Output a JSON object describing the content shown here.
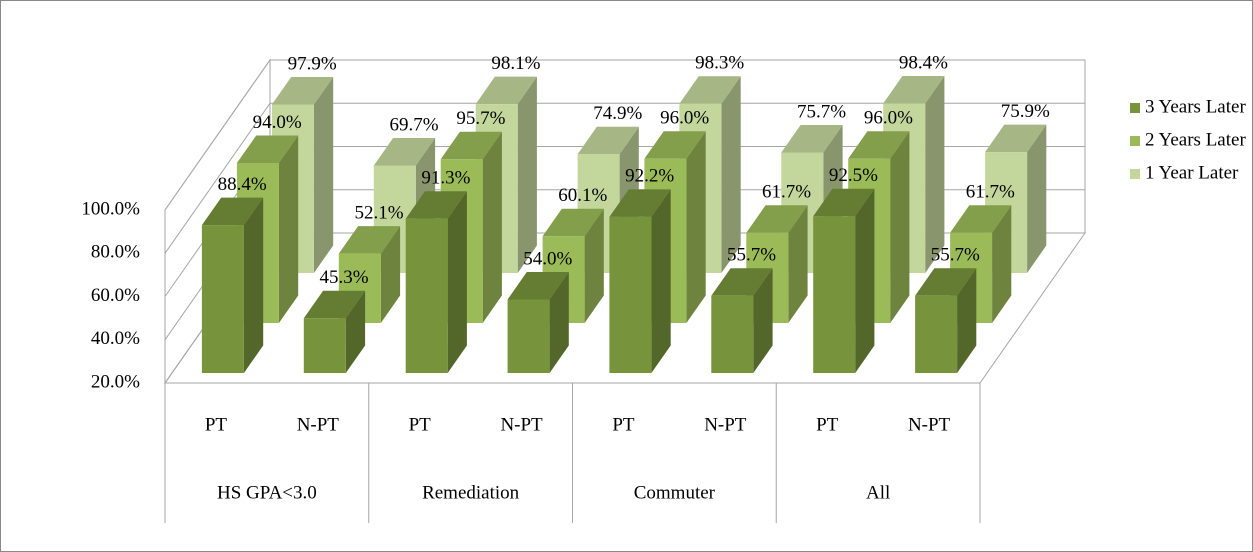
{
  "chart_data": {
    "type": "bar3d",
    "categories": [
      "PT",
      "N-PT",
      "PT",
      "N-PT",
      "PT",
      "N-PT",
      "PT",
      "N-PT"
    ],
    "groups": [
      "HS GPA<3.0",
      "Remediation",
      "Commuter",
      "All"
    ],
    "series": [
      {
        "name": "3 Years Later",
        "color": "#77933c",
        "values": [
          88.4,
          45.3,
          91.3,
          54.0,
          92.2,
          55.7,
          92.5,
          55.7
        ],
        "value_labels": [
          "88.4%",
          "45.3%",
          "91.3%",
          "54.0%",
          "92.2%",
          "55.7%",
          "92.5%",
          "55.7%"
        ]
      },
      {
        "name": "2 Years Later",
        "color": "#9bbb59",
        "values": [
          94.0,
          52.1,
          95.7,
          60.1,
          96.0,
          61.7,
          96.0,
          61.7
        ],
        "value_labels": [
          "94.0%",
          "52.1%",
          "95.7%",
          "60.1%",
          "96.0%",
          "61.7%",
          "96.0%",
          "61.7%"
        ]
      },
      {
        "name": "1 Year Later",
        "color": "#c3d69b",
        "values": [
          97.9,
          69.7,
          98.1,
          74.9,
          98.3,
          75.7,
          98.4,
          75.9
        ],
        "value_labels": [
          "97.9%",
          "69.7%",
          "98.1%",
          "74.9%",
          "98.3%",
          "75.7%",
          "98.4%",
          "75.9%"
        ]
      }
    ],
    "ylim": [
      20,
      100
    ],
    "yticks": [
      {
        "value": 20,
        "label": "20.0%"
      },
      {
        "value": 40,
        "label": "40.0%"
      },
      {
        "value": 60,
        "label": "60.0%"
      },
      {
        "value": 80,
        "label": "80.0%"
      },
      {
        "value": 100,
        "label": "100.0%"
      }
    ],
    "grid": true,
    "legend": "right"
  }
}
